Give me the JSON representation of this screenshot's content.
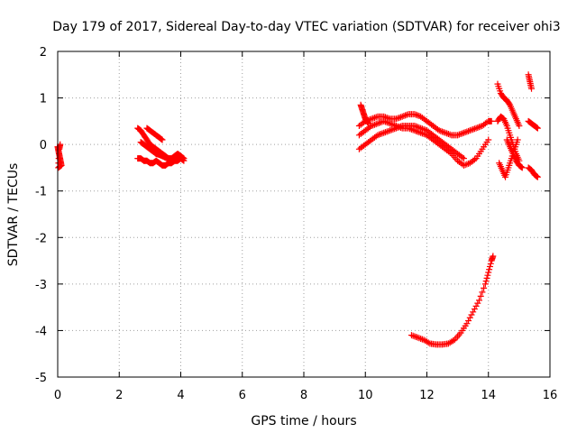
{
  "chart_data": {
    "type": "scatter",
    "title": "Day 179 of 2017, Sidereal Day-to-day VTEC variation (SDTVAR) for receiver ohi3",
    "xlabel": "GPS time / hours",
    "ylabel": "SDTVAR / TECUs",
    "xlim": [
      0,
      16
    ],
    "ylim": [
      -5,
      2
    ],
    "xticks": [
      "0",
      "2",
      "4",
      "6",
      "8",
      "10",
      "12",
      "14",
      "16"
    ],
    "yticks": [
      "2",
      "1",
      "0",
      "-1",
      "-2",
      "-3",
      "-4",
      "-5"
    ],
    "grid": true,
    "marker": "plus",
    "color": "#ff0000",
    "series": [
      {
        "x": [
          0.0,
          0.03,
          0.06,
          0.09,
          0.12,
          0.02,
          0.05,
          0.08
        ],
        "y": [
          -0.05,
          -0.15,
          -0.25,
          -0.35,
          -0.45,
          -0.5,
          -0.1,
          0.0
        ]
      },
      {
        "x": [
          2.6,
          2.7,
          2.8,
          2.9,
          3.0,
          3.1,
          3.2,
          3.3,
          3.4,
          3.5,
          3.6,
          3.7,
          3.8,
          3.9,
          4.0,
          4.1
        ],
        "y": [
          0.35,
          0.3,
          0.2,
          0.1,
          0.0,
          -0.05,
          -0.1,
          -0.15,
          -0.2,
          -0.25,
          -0.3,
          -0.3,
          -0.25,
          -0.2,
          -0.25,
          -0.3
        ]
      },
      {
        "x": [
          2.6,
          2.7,
          2.8,
          2.9,
          3.0,
          3.1,
          3.2,
          3.3,
          3.4,
          3.5,
          3.6,
          3.7,
          3.8,
          3.9,
          4.0,
          4.1
        ],
        "y": [
          -0.3,
          -0.3,
          -0.35,
          -0.35,
          -0.4,
          -0.4,
          -0.35,
          -0.4,
          -0.45,
          -0.45,
          -0.4,
          -0.4,
          -0.35,
          -0.35,
          -0.3,
          -0.35
        ]
      },
      {
        "x": [
          2.7,
          2.8,
          2.9,
          3.0,
          3.1,
          3.2,
          3.3,
          3.4,
          3.5,
          3.6,
          3.7,
          3.8,
          3.9,
          4.0
        ],
        "y": [
          0.05,
          0.0,
          -0.05,
          -0.1,
          -0.15,
          -0.2,
          -0.22,
          -0.25,
          -0.28,
          -0.3,
          -0.32,
          -0.3,
          -0.28,
          -0.25
        ]
      },
      {
        "x": [
          2.9,
          3.0,
          3.1,
          3.2,
          3.3,
          3.4
        ],
        "y": [
          0.35,
          0.3,
          0.25,
          0.2,
          0.15,
          0.1
        ]
      },
      {
        "x": [
          9.8,
          10.0,
          10.2,
          10.4,
          10.6,
          10.8,
          11.0,
          11.2,
          11.4,
          11.6,
          11.8,
          12.0,
          12.2,
          12.4,
          12.6,
          12.8,
          13.0,
          13.2,
          13.4,
          13.6,
          13.8,
          14.0,
          14.1
        ],
        "y": [
          0.4,
          0.5,
          0.55,
          0.6,
          0.6,
          0.55,
          0.55,
          0.6,
          0.65,
          0.65,
          0.6,
          0.5,
          0.4,
          0.3,
          0.25,
          0.2,
          0.2,
          0.25,
          0.3,
          0.35,
          0.4,
          0.5,
          0.5
        ]
      },
      {
        "x": [
          9.8,
          10.0,
          10.2,
          10.4,
          10.6,
          10.8,
          11.0,
          11.2,
          11.4,
          11.6,
          11.8,
          12.0,
          12.2,
          12.4,
          12.6,
          12.8,
          13.0,
          13.2,
          13.4,
          13.6,
          13.8,
          14.0
        ],
        "y": [
          0.2,
          0.3,
          0.4,
          0.45,
          0.5,
          0.45,
          0.4,
          0.35,
          0.35,
          0.3,
          0.25,
          0.2,
          0.1,
          0.0,
          -0.1,
          -0.2,
          -0.35,
          -0.45,
          -0.4,
          -0.3,
          -0.1,
          0.1
        ]
      },
      {
        "x": [
          9.8,
          10.0,
          10.2,
          10.4,
          10.6,
          10.8,
          11.0,
          11.2,
          11.4,
          11.6,
          11.8,
          12.0,
          12.2,
          12.4,
          12.6,
          12.8,
          13.0,
          13.2
        ],
        "y": [
          -0.1,
          0.0,
          0.1,
          0.2,
          0.25,
          0.3,
          0.35,
          0.4,
          0.4,
          0.4,
          0.35,
          0.3,
          0.2,
          0.1,
          0.0,
          -0.1,
          -0.2,
          -0.3
        ]
      },
      {
        "x": [
          9.85,
          9.9,
          9.95,
          10.0,
          10.05,
          10.1
        ],
        "y": [
          0.85,
          0.75,
          0.65,
          0.55,
          0.5,
          0.45
        ]
      },
      {
        "x": [
          11.5,
          11.7,
          11.9,
          12.1,
          12.3,
          12.5,
          12.7,
          12.9,
          13.1,
          13.3,
          13.5,
          13.7,
          13.9,
          14.0,
          14.1,
          14.15
        ],
        "y": [
          -4.1,
          -4.15,
          -4.2,
          -4.28,
          -4.3,
          -4.3,
          -4.28,
          -4.2,
          -4.05,
          -3.85,
          -3.6,
          -3.35,
          -3.0,
          -2.75,
          -2.5,
          -2.4
        ]
      },
      {
        "x": [
          14.3,
          14.4,
          14.5,
          14.6,
          14.7,
          14.8,
          14.9,
          15.0
        ],
        "y": [
          1.3,
          1.1,
          1.0,
          0.95,
          0.85,
          0.7,
          0.55,
          0.4
        ]
      },
      {
        "x": [
          14.3,
          14.4,
          14.5,
          14.6,
          14.7,
          14.8,
          14.9,
          15.0
        ],
        "y": [
          0.5,
          0.6,
          0.55,
          0.4,
          0.2,
          0.0,
          -0.2,
          -0.35
        ]
      },
      {
        "x": [
          14.35,
          14.45,
          14.55,
          14.65,
          14.75,
          14.85,
          14.95
        ],
        "y": [
          -0.4,
          -0.55,
          -0.7,
          -0.5,
          -0.3,
          -0.1,
          0.1
        ]
      },
      {
        "x": [
          14.6,
          14.7,
          14.8,
          14.9,
          15.0,
          15.1
        ],
        "y": [
          0.1,
          -0.05,
          -0.2,
          -0.35,
          -0.45,
          -0.5
        ]
      },
      {
        "x": [
          15.3,
          15.35,
          15.4
        ],
        "y": [
          1.5,
          1.35,
          1.2
        ]
      },
      {
        "x": [
          15.3,
          15.4,
          15.5,
          15.6
        ],
        "y": [
          0.5,
          0.45,
          0.4,
          0.35
        ]
      },
      {
        "x": [
          15.3,
          15.4,
          15.5,
          15.6
        ],
        "y": [
          -0.5,
          -0.55,
          -0.65,
          -0.7
        ]
      }
    ]
  }
}
